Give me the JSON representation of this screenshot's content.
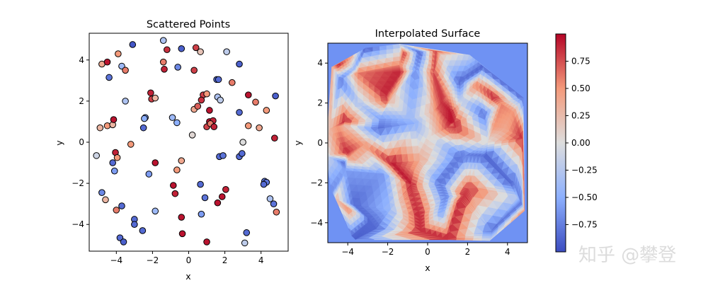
{
  "colors": {
    "cmap_low": "#3b4cc0",
    "cmap_mid": "#dddddd",
    "cmap_high": "#b40426",
    "edge": "#000000"
  },
  "watermark": "知乎 @攀登",
  "chart_data": [
    {
      "type": "scatter",
      "title": "Scattered Points",
      "xlabel": "x",
      "ylabel": "y",
      "xlim": [
        -5.5,
        5.5
      ],
      "ylim": [
        -5.3,
        5.3
      ],
      "xticks": [
        -4,
        -2,
        0,
        2,
        4
      ],
      "yticks": [
        -4,
        -2,
        0,
        2,
        4
      ],
      "colormap": "coolwarm",
      "points": [
        {
          "x": -4.8,
          "y": 3.8,
          "v": 0.4
        },
        {
          "x": -4.5,
          "y": 3.9,
          "v": 0.95
        },
        {
          "x": -3.9,
          "y": 4.3,
          "v": 0.5
        },
        {
          "x": -3.1,
          "y": 4.75,
          "v": -0.95
        },
        {
          "x": -1.4,
          "y": 4.95,
          "v": -0.3
        },
        {
          "x": -1.2,
          "y": 4.5,
          "v": 0.85
        },
        {
          "x": -0.4,
          "y": 4.55,
          "v": -0.9
        },
        {
          "x": 0.4,
          "y": 4.6,
          "v": 0.8
        },
        {
          "x": 0.65,
          "y": 4.4,
          "v": 0.2
        },
        {
          "x": 2.1,
          "y": 4.4,
          "v": -0.2
        },
        {
          "x": 2.8,
          "y": 3.8,
          "v": -0.9
        },
        {
          "x": -4.4,
          "y": 3.15,
          "v": -0.8
        },
        {
          "x": -3.7,
          "y": 3.7,
          "v": -0.4
        },
        {
          "x": -3.5,
          "y": 3.5,
          "v": 0.6
        },
        {
          "x": -1.4,
          "y": 3.9,
          "v": 0.6
        },
        {
          "x": -1.35,
          "y": 3.55,
          "v": 0.9
        },
        {
          "x": -0.6,
          "y": 3.65,
          "v": -0.7
        },
        {
          "x": 0.3,
          "y": 3.5,
          "v": 0.8
        },
        {
          "x": 1.55,
          "y": 3.05,
          "v": -0.85
        },
        {
          "x": 1.65,
          "y": 3.05,
          "v": -0.85
        },
        {
          "x": 2.4,
          "y": 2.9,
          "v": 0.6
        },
        {
          "x": -3.5,
          "y": 2.0,
          "v": -0.3
        },
        {
          "x": -2.1,
          "y": 2.4,
          "v": 0.9
        },
        {
          "x": -2.05,
          "y": 2.1,
          "v": 0.8
        },
        {
          "x": -1.85,
          "y": 2.15,
          "v": 0.3
        },
        {
          "x": 0.8,
          "y": 2.3,
          "v": 0.8
        },
        {
          "x": 1.0,
          "y": 2.35,
          "v": 0.5
        },
        {
          "x": 1.6,
          "y": 2.2,
          "v": -0.3
        },
        {
          "x": 1.75,
          "y": 2.05,
          "v": -0.2
        },
        {
          "x": 3.3,
          "y": 2.3,
          "v": 0.95
        },
        {
          "x": 3.7,
          "y": 1.95,
          "v": 0.6
        },
        {
          "x": 4.8,
          "y": 2.25,
          "v": -0.9
        },
        {
          "x": 0.3,
          "y": 1.6,
          "v": 0.4
        },
        {
          "x": 0.5,
          "y": 1.75,
          "v": 0.7
        },
        {
          "x": 0.7,
          "y": 2.05,
          "v": 0.85
        },
        {
          "x": 1.15,
          "y": 1.55,
          "v": 0.95
        },
        {
          "x": 2.8,
          "y": 1.45,
          "v": -0.85
        },
        {
          "x": 4.3,
          "y": 1.55,
          "v": 0.5
        },
        {
          "x": -2.4,
          "y": 1.2,
          "v": -0.6
        },
        {
          "x": -2.45,
          "y": 1.15,
          "v": -0.5
        },
        {
          "x": -0.9,
          "y": 1.2,
          "v": -0.4
        },
        {
          "x": -0.65,
          "y": 0.95,
          "v": -0.5
        },
        {
          "x": 1.15,
          "y": 1.0,
          "v": 0.95
        },
        {
          "x": 1.35,
          "y": 1.05,
          "v": 0.9
        },
        {
          "x": 1.0,
          "y": 0.75,
          "v": 0.8
        },
        {
          "x": 1.2,
          "y": 0.9,
          "v": 0.6
        },
        {
          "x": 1.4,
          "y": 0.75,
          "v": 0.9
        },
        {
          "x": -4.9,
          "y": 0.7,
          "v": 0.3
        },
        {
          "x": -4.5,
          "y": 0.8,
          "v": 0.5
        },
        {
          "x": -4.2,
          "y": 0.85,
          "v": 0.3
        },
        {
          "x": -4.15,
          "y": 1.1,
          "v": 0.95
        },
        {
          "x": -2.5,
          "y": 0.7,
          "v": -0.85
        },
        {
          "x": 0.2,
          "y": 0.35,
          "v": 0.05
        },
        {
          "x": 3.3,
          "y": 0.8,
          "v": 0.5
        },
        {
          "x": 3.9,
          "y": 0.7,
          "v": 0.4
        },
        {
          "x": 4.75,
          "y": 0.2,
          "v": 0.9
        },
        {
          "x": 3.0,
          "y": 0.0,
          "v": 0.0
        },
        {
          "x": -5.1,
          "y": -0.65,
          "v": -0.1
        },
        {
          "x": -4.05,
          "y": -0.5,
          "v": 0.9
        },
        {
          "x": -3.95,
          "y": -0.75,
          "v": 0.5
        },
        {
          "x": -3.2,
          "y": -0.1,
          "v": 0.5
        },
        {
          "x": -4.2,
          "y": -1.0,
          "v": -0.85
        },
        {
          "x": -4.1,
          "y": -1.4,
          "v": -0.6
        },
        {
          "x": -1.85,
          "y": -1.0,
          "v": 0.95
        },
        {
          "x": -0.4,
          "y": -0.9,
          "v": 0.4
        },
        {
          "x": -0.65,
          "y": -1.35,
          "v": 0.5
        },
        {
          "x": 1.7,
          "y": -0.7,
          "v": -0.85
        },
        {
          "x": 1.9,
          "y": -0.65,
          "v": -0.8
        },
        {
          "x": 2.8,
          "y": -0.7,
          "v": -0.85
        },
        {
          "x": 2.95,
          "y": -0.55,
          "v": -0.85
        },
        {
          "x": -2.2,
          "y": -1.55,
          "v": -0.6
        },
        {
          "x": -0.85,
          "y": -2.1,
          "v": 0.95
        },
        {
          "x": -0.75,
          "y": -2.5,
          "v": 0.9
        },
        {
          "x": 0.65,
          "y": -2.05,
          "v": -0.85
        },
        {
          "x": 0.9,
          "y": -2.7,
          "v": -0.8
        },
        {
          "x": 1.85,
          "y": -2.65,
          "v": 0.95
        },
        {
          "x": 2.05,
          "y": -2.3,
          "v": 0.9
        },
        {
          "x": 1.6,
          "y": -2.95,
          "v": 0.95
        },
        {
          "x": 4.2,
          "y": -1.9,
          "v": -0.8
        },
        {
          "x": 4.3,
          "y": -1.95,
          "v": -0.8
        },
        {
          "x": 4.15,
          "y": -2.05,
          "v": -0.85
        },
        {
          "x": -4.8,
          "y": -2.45,
          "v": -0.7
        },
        {
          "x": -4.6,
          "y": -2.8,
          "v": 0.3
        },
        {
          "x": -4.0,
          "y": -3.3,
          "v": 0.6
        },
        {
          "x": -3.7,
          "y": -3.1,
          "v": -0.85
        },
        {
          "x": -1.85,
          "y": -3.35,
          "v": -0.4
        },
        {
          "x": -0.4,
          "y": -3.65,
          "v": 0.95
        },
        {
          "x": 0.7,
          "y": -3.5,
          "v": -0.6
        },
        {
          "x": 4.5,
          "y": -2.75,
          "v": -0.3
        },
        {
          "x": 4.7,
          "y": -3.0,
          "v": -0.8
        },
        {
          "x": 4.85,
          "y": -3.4,
          "v": 0.6
        },
        {
          "x": -3.0,
          "y": -3.75,
          "v": -0.85
        },
        {
          "x": -3.0,
          "y": -4.0,
          "v": -0.85
        },
        {
          "x": -2.55,
          "y": -4.3,
          "v": -0.85
        },
        {
          "x": -3.8,
          "y": -4.65,
          "v": -0.85
        },
        {
          "x": -3.6,
          "y": -4.85,
          "v": -0.9
        },
        {
          "x": -0.35,
          "y": -4.45,
          "v": 0.95
        },
        {
          "x": 1.0,
          "y": -4.85,
          "v": 0.95
        },
        {
          "x": 3.2,
          "y": -4.4,
          "v": -0.85
        },
        {
          "x": 3.1,
          "y": -4.9,
          "v": -0.2
        }
      ]
    },
    {
      "type": "heatmap",
      "title": "Interpolated Surface",
      "xlabel": "x",
      "ylabel": "y",
      "xlim": [
        -5,
        5
      ],
      "ylim": [
        -5,
        5
      ],
      "xticks": [
        -4,
        -2,
        0,
        2,
        4
      ],
      "yticks": [
        -4,
        -2,
        0,
        2,
        4
      ],
      "colormap": "coolwarm",
      "colorbar": {
        "range": [
          -1,
          1
        ],
        "ticks": [
          "0.75",
          "0.50",
          "0.25",
          "0.00",
          "−0.25",
          "−0.50",
          "−0.75"
        ],
        "tick_values": [
          0.75,
          0.5,
          0.25,
          0,
          -0.25,
          -0.5,
          -0.75
        ]
      }
    }
  ]
}
